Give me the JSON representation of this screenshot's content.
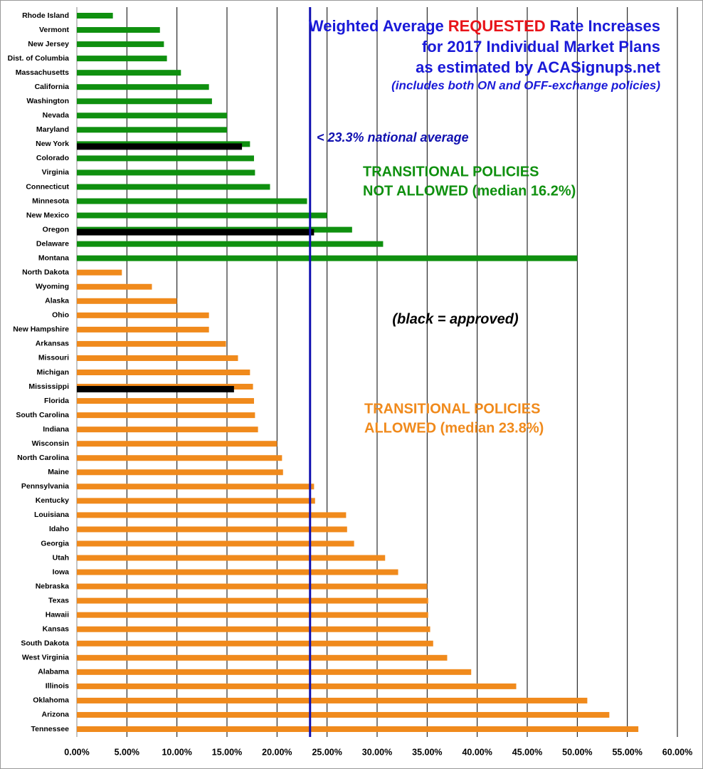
{
  "chart_data": {
    "type": "hbar",
    "title": {
      "lines": [
        [
          "Weighted Average",
          "REQUESTED",
          "Rate Increases"
        ],
        [
          "for 2017 Individual Market Plans"
        ],
        [
          "as estimated by ACASignups.net"
        ]
      ],
      "colors": [
        "#1a1ad8",
        "#e8141a",
        "#1a1ad8"
      ]
    },
    "subtitle": "(includes both ON and OFF-exchange policies)",
    "categories": [
      "Rhode Island",
      "Vermont",
      "New Jersey",
      "Dist. of Columbia",
      "Massachusetts",
      "California",
      "Washington",
      "Nevada",
      "Maryland",
      "New York",
      "Colorado",
      "Virginia",
      "Connecticut",
      "Minnesota",
      "New Mexico",
      "Oregon",
      "Delaware",
      "Montana",
      "North Dakota",
      "Wyoming",
      "Alaska",
      "Ohio",
      "New Hampshire",
      "Arkansas",
      "Missouri",
      "Michigan",
      "Mississippi",
      "Florida",
      "South Carolina",
      "Indiana",
      "Wisconsin",
      "North Carolina",
      "Maine",
      "Pennsylvania",
      "Kentucky",
      "Louisiana",
      "Idaho",
      "Georgia",
      "Utah",
      "Iowa",
      "Nebraska",
      "Texas",
      "Hawaii",
      "Kansas",
      "South Dakota",
      "West Virginia",
      "Alabama",
      "Illinois",
      "Oklahoma",
      "Arizona",
      "Tennessee"
    ],
    "series": [
      {
        "color": "#0f900f",
        "values": [
          3.6,
          8.3,
          8.7,
          9.0,
          10.4,
          13.2,
          13.5,
          15.0,
          15.0,
          17.3,
          17.7,
          17.8,
          19.3,
          23.0,
          25.0,
          27.5,
          30.6,
          50.0,
          null,
          null,
          null,
          null,
          null,
          null,
          null,
          null,
          null,
          null,
          null,
          null,
          null,
          null,
          null,
          null,
          null,
          null,
          null,
          null,
          null,
          null,
          null,
          null,
          null,
          null,
          null,
          null,
          null,
          null,
          null,
          null,
          null
        ]
      },
      {
        "color": "#f08a1c",
        "values": [
          null,
          null,
          null,
          null,
          null,
          null,
          null,
          null,
          null,
          null,
          null,
          null,
          null,
          null,
          null,
          null,
          null,
          null,
          4.5,
          7.5,
          10.0,
          13.2,
          13.2,
          14.9,
          16.1,
          17.3,
          17.6,
          17.7,
          17.8,
          18.1,
          20.0,
          20.5,
          20.6,
          23.7,
          23.8,
          26.9,
          27.0,
          27.7,
          30.8,
          32.1,
          35.0,
          35.1,
          35.1,
          35.3,
          35.6,
          37.0,
          39.4,
          43.9,
          51.0,
          53.2,
          56.1
        ]
      },
      {
        "color": "#000000",
        "values": [
          null,
          null,
          null,
          null,
          null,
          null,
          null,
          null,
          null,
          16.5,
          null,
          null,
          null,
          null,
          null,
          23.7,
          null,
          null,
          null,
          null,
          null,
          null,
          null,
          null,
          null,
          null,
          15.7,
          null,
          null,
          null,
          null,
          null,
          null,
          null,
          null,
          null,
          null,
          null,
          null,
          null,
          null,
          null,
          null,
          null,
          null,
          null,
          null,
          null,
          null,
          null,
          null
        ]
      }
    ],
    "xlim": [
      0,
      60
    ],
    "xticks": [
      {
        "value": 0,
        "label": "0.00%"
      },
      {
        "value": 5,
        "label": "5.00%"
      },
      {
        "value": 10,
        "label": "10.00%"
      },
      {
        "value": 15,
        "label": "15.00%"
      },
      {
        "value": 20,
        "label": "20.00%"
      },
      {
        "value": 25,
        "label": "25.00%"
      },
      {
        "value": 30,
        "label": "30.00%"
      },
      {
        "value": 35,
        "label": "35.00%"
      },
      {
        "value": 40,
        "label": "40.00%"
      },
      {
        "value": 45,
        "label": "45.00%"
      },
      {
        "value": 50,
        "label": "50.00%"
      },
      {
        "value": 55,
        "label": "55.00%"
      },
      {
        "value": 60,
        "label": "60.00%"
      }
    ],
    "grid": true,
    "reference_line": {
      "value": 23.3,
      "label": "< 23.3% national average",
      "color": "#1010b0"
    },
    "annotations": [
      {
        "lines": [
          "TRANSITIONAL POLICIES",
          "NOT ALLOWED (median 16.2%)"
        ],
        "color": "#0f900f"
      },
      {
        "lines": [
          "(black = approved)"
        ],
        "color": "#000000"
      },
      {
        "lines": [
          "TRANSITIONAL POLICIES",
          "ALLOWED (median 23.8%)"
        ],
        "color": "#f08a1c"
      }
    ]
  }
}
